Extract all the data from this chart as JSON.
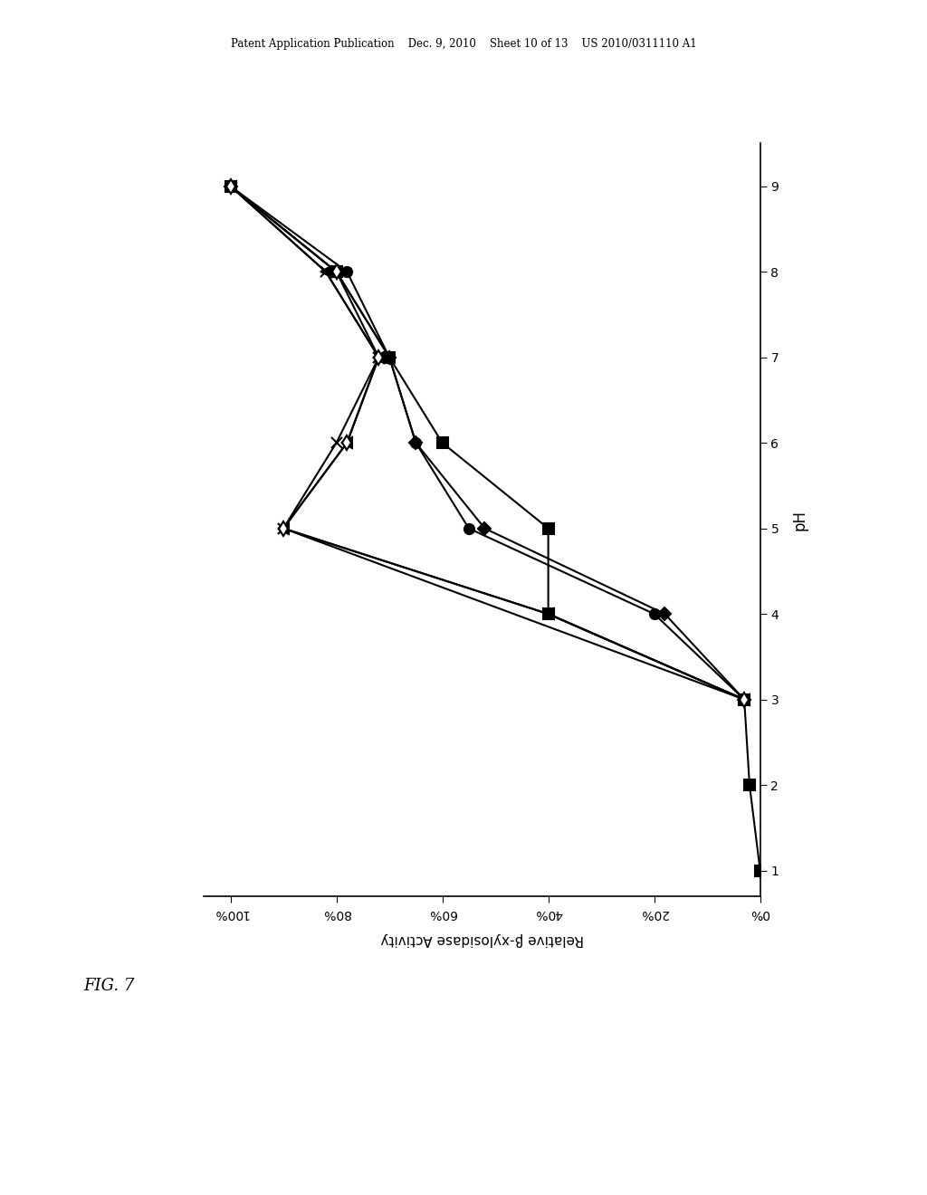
{
  "header": "Patent Application Publication    Dec. 9, 2010    Sheet 10 of 13    US 2010/0311110 A1",
  "fig_label": "FIG. 7",
  "xlabel": "Relative β-xylosidase Activity",
  "ylabel": "pH",
  "series": [
    {
      "ph": [
        1,
        2,
        3,
        4,
        5,
        6,
        7,
        8,
        9
      ],
      "activity": [
        0,
        2,
        3,
        40,
        40,
        60,
        70,
        80,
        100
      ],
      "marker": "s",
      "mfc": "black",
      "ms": 9
    },
    {
      "ph": [
        3,
        4,
        5,
        6,
        7,
        8,
        9
      ],
      "activity": [
        3,
        20,
        55,
        65,
        70,
        78,
        100
      ],
      "marker": "o",
      "mfc": "black",
      "ms": 8
    },
    {
      "ph": [
        3,
        4,
        5,
        6,
        7,
        8,
        9
      ],
      "activity": [
        3,
        18,
        52,
        65,
        70,
        80,
        100
      ],
      "marker": "D",
      "mfc": "black",
      "ms": 7
    },
    {
      "ph": [
        3,
        4,
        5,
        6,
        7,
        8,
        9
      ],
      "activity": [
        3,
        40,
        90,
        80,
        72,
        82,
        100
      ],
      "marker": "x",
      "mfc": "none",
      "ms": 9
    },
    {
      "ph": [
        3,
        4,
        5,
        6,
        7,
        8,
        9
      ],
      "activity": [
        3,
        40,
        90,
        78,
        72,
        82,
        100
      ],
      "marker": "<",
      "mfc": "black",
      "ms": 8
    },
    {
      "ph": [
        3,
        5,
        6,
        7,
        8,
        9
      ],
      "activity": [
        3,
        90,
        78,
        72,
        80,
        100
      ],
      "marker": "d",
      "mfc": "white",
      "ms": 8
    }
  ],
  "xlim": [
    0,
    105
  ],
  "ylim": [
    0.7,
    9.5
  ],
  "xticks": [
    0,
    20,
    40,
    60,
    80,
    100
  ],
  "yticks": [
    1,
    2,
    3,
    4,
    5,
    6,
    7,
    8,
    9
  ],
  "background": "#ffffff",
  "linewidth": 1.5
}
